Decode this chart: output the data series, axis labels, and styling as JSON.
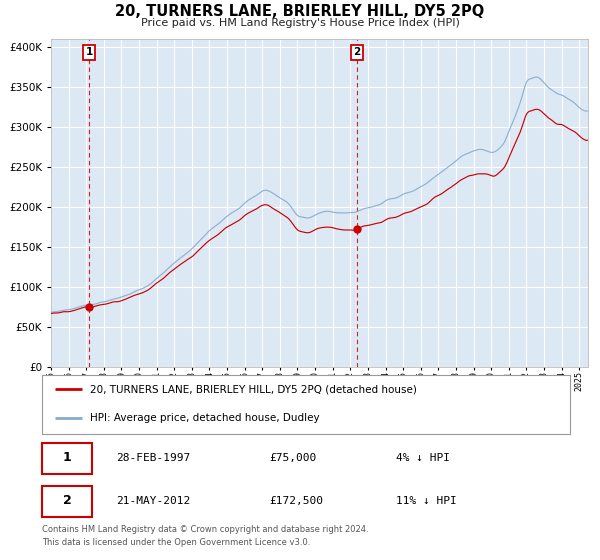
{
  "title": "20, TURNERS LANE, BRIERLEY HILL, DY5 2PQ",
  "subtitle": "Price paid vs. HM Land Registry's House Price Index (HPI)",
  "legend_line1": "20, TURNERS LANE, BRIERLEY HILL, DY5 2PQ (detached house)",
  "legend_line2": "HPI: Average price, detached house, Dudley",
  "sale1_date": "28-FEB-1997",
  "sale1_price": 75000,
  "sale1_label": "1",
  "sale1_note": "4% ↓ HPI",
  "sale2_date": "21-MAY-2012",
  "sale2_price": 172500,
  "sale2_label": "2",
  "sale2_note": "11% ↓ HPI",
  "footer": "Contains HM Land Registry data © Crown copyright and database right 2024.\nThis data is licensed under the Open Government Licence v3.0.",
  "ylim": [
    0,
    410000
  ],
  "xlim_start": 1995.0,
  "xlim_end": 2025.5,
  "background_color": "#dce9f5",
  "fig_bg_color": "#ffffff",
  "red_line_color": "#cc0000",
  "blue_line_color": "#88aacc",
  "grid_color": "#ffffff",
  "dashed_line_color": "#cc0000",
  "sale1_x": 1997.16,
  "sale2_x": 2012.38,
  "hpi_anchors_x": [
    1995,
    1995.5,
    1996,
    1996.5,
    1997,
    1997.5,
    1998,
    1998.5,
    1999,
    1999.5,
    2000,
    2000.5,
    2001,
    2001.5,
    2002,
    2002.5,
    2003,
    2003.5,
    2004,
    2004.5,
    2005,
    2005.5,
    2006,
    2006.5,
    2007,
    2007.25,
    2007.5,
    2007.75,
    2008,
    2008.25,
    2008.5,
    2008.75,
    2009,
    2009.25,
    2009.5,
    2009.75,
    2010,
    2010.25,
    2010.5,
    2010.75,
    2011,
    2011.25,
    2011.5,
    2011.75,
    2012,
    2012.25,
    2012.5,
    2012.75,
    2013,
    2013.25,
    2013.5,
    2013.75,
    2014,
    2014.5,
    2015,
    2015.5,
    2016,
    2016.5,
    2017,
    2017.5,
    2018,
    2018.5,
    2019,
    2019.5,
    2020,
    2020.25,
    2020.5,
    2020.75,
    2021,
    2021.25,
    2021.5,
    2021.75,
    2022,
    2022.25,
    2022.5,
    2022.75,
    2023,
    2023.25,
    2023.5,
    2023.75,
    2024,
    2024.25,
    2024.5,
    2024.75,
    2025,
    2025.5
  ],
  "hpi_anchors_y": [
    68000,
    70000,
    72000,
    74500,
    77000,
    79000,
    81000,
    83500,
    87000,
    91000,
    97000,
    103000,
    110000,
    120000,
    130000,
    139000,
    148000,
    159000,
    170000,
    179000,
    188000,
    196000,
    205000,
    212000,
    220000,
    221000,
    219000,
    216000,
    212000,
    208000,
    204000,
    197000,
    190000,
    188000,
    187000,
    188000,
    190000,
    192000,
    194000,
    195000,
    195000,
    194000,
    193000,
    192000,
    193000,
    194000,
    196000,
    198000,
    199000,
    200000,
    202000,
    204000,
    208000,
    212000,
    216000,
    220000,
    226000,
    232000,
    240000,
    248000,
    258000,
    265000,
    270000,
    272000,
    268000,
    270000,
    275000,
    282000,
    295000,
    308000,
    322000,
    338000,
    355000,
    360000,
    363000,
    362000,
    356000,
    350000,
    346000,
    342000,
    340000,
    337000,
    334000,
    330000,
    325000,
    320000
  ],
  "sale1_scale": 0.957,
  "sale2_scale": 0.89
}
